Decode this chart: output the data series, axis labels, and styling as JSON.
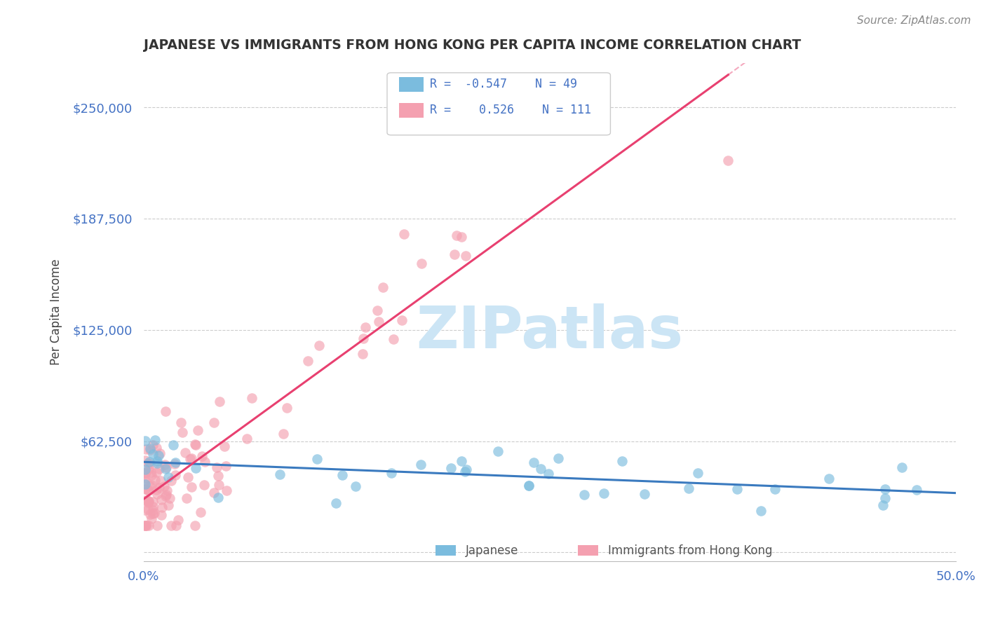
{
  "title": "JAPANESE VS IMMIGRANTS FROM HONG KONG PER CAPITA INCOME CORRELATION CHART",
  "source": "Source: ZipAtlas.com",
  "ylabel": "Per Capita Income",
  "x_min": 0.0,
  "x_max": 0.5,
  "y_min": -5000,
  "y_max": 275000,
  "yticks": [
    0,
    62500,
    125000,
    187500,
    250000
  ],
  "ytick_labels": [
    "",
    "$62,500",
    "$125,000",
    "$187,500",
    "$250,000"
  ],
  "xticks": [
    0.0,
    0.1,
    0.2,
    0.3,
    0.4,
    0.5
  ],
  "xtick_labels": [
    "0.0%",
    "",
    "",
    "",
    "",
    "50.0%"
  ],
  "japanese_R": -0.547,
  "japanese_N": 49,
  "hk_R": 0.526,
  "hk_N": 111,
  "blue_color": "#7bbcde",
  "pink_color": "#f4a0b0",
  "blue_line_color": "#3a7abf",
  "pink_line_color": "#e84070",
  "watermark_color": "#cce5f5",
  "background_color": "#ffffff",
  "grid_color": "#cccccc",
  "tick_label_color": "#4472c4",
  "title_color": "#333333",
  "source_color": "#888888",
  "ylabel_color": "#444444",
  "legend_edge_color": "#cccccc"
}
